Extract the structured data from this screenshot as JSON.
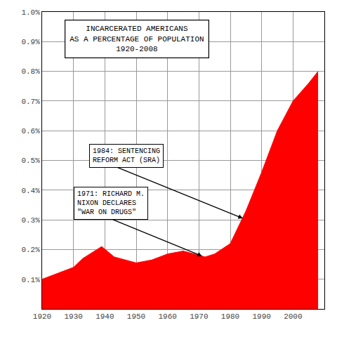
{
  "chart_data": {
    "type": "area",
    "title": "INCARCERATED AMERICANS\nAS A PERCENTAGE OF POPULATION\n1920-2008",
    "x": [
      1920,
      1925,
      1930,
      1933,
      1939,
      1943,
      1950,
      1955,
      1960,
      1965,
      1970,
      1972,
      1975,
      1980,
      1985,
      1990,
      1995,
      2000,
      2005,
      2008
    ],
    "values": [
      0.1,
      0.12,
      0.14,
      0.17,
      0.21,
      0.175,
      0.155,
      0.165,
      0.185,
      0.195,
      0.18,
      0.175,
      0.185,
      0.22,
      0.33,
      0.46,
      0.6,
      0.7,
      0.76,
      0.8
    ],
    "color": "#FF0000",
    "xlim": [
      1920,
      2010
    ],
    "ylim": [
      0.0,
      1.0
    ],
    "xticks": [
      1920,
      1930,
      1940,
      1950,
      1960,
      1970,
      1980,
      1990,
      2000
    ],
    "yticks": [
      {
        "value": 0.1,
        "label": "0.1%"
      },
      {
        "value": 0.2,
        "label": "0.2%"
      },
      {
        "value": 0.3,
        "label": "0.3%"
      },
      {
        "value": 0.4,
        "label": "0.4%"
      },
      {
        "value": 0.5,
        "label": "0.5%"
      },
      {
        "value": 0.6,
        "label": "0.6%"
      },
      {
        "value": 0.7,
        "label": "0.7%"
      },
      {
        "value": 0.8,
        "label": "0.8%"
      },
      {
        "value": 0.9,
        "label": "0.9%"
      },
      {
        "value": 1.0,
        "label": "1.0%"
      }
    ],
    "grid": true,
    "annotations": [
      {
        "text": "1984: SENTENCING\nREFORM ACT (SRA)",
        "x": 1984,
        "y": 0.305,
        "text_x": 1935,
        "text_y": 0.515
      },
      {
        "text": "1971: RICHARD M.\nNIXON DECLARES\n\"WAR ON DRUGS\"",
        "x": 1971,
        "y": 0.178,
        "text_x": 1930,
        "text_y": 0.355
      }
    ]
  }
}
